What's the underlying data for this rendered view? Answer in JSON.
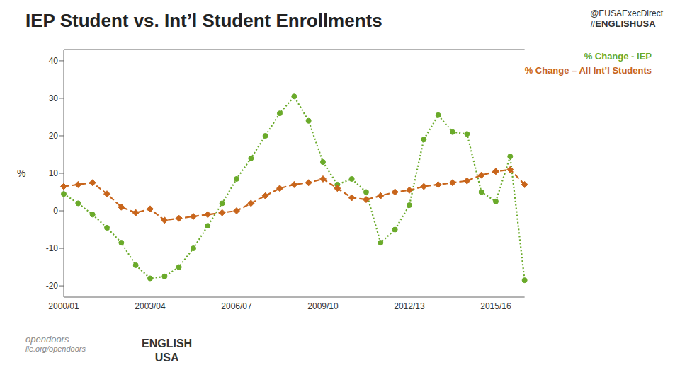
{
  "chart_data": {
    "type": "line",
    "title": "IEP Student vs. Int’l Student Enrollments",
    "annotations": [
      "@EUSAExecDirect",
      "#ENGLISHUSA",
      "ENGLISH",
      "USA",
      "open",
      "doors",
      "iie.org/opendoors"
    ],
    "ylabel": "%",
    "categories": [
      "2000/01",
      null,
      null,
      null,
      null,
      null,
      "2003/04",
      null,
      null,
      null,
      null,
      null,
      "2006/07",
      null,
      null,
      null,
      null,
      null,
      "2009/10",
      null,
      null,
      null,
      null,
      null,
      "2012/13",
      null,
      null,
      null,
      null,
      null,
      "2015/16",
      null,
      null
    ],
    "series": [
      {
        "name": "% Change - IEP",
        "color": "#6aaa2a",
        "marker": "circle",
        "line_style": "dotted",
        "values": [
          4.5,
          2.0,
          -1.0,
          -4.5,
          -8.5,
          -14.5,
          -18.0,
          -17.5,
          -15.0,
          -10.0,
          -4.0,
          2.0,
          8.5,
          14.0,
          20.0,
          26.0,
          30.5,
          24.0,
          13.0,
          7.0,
          8.5,
          5.0,
          -8.5,
          -5.0,
          1.5,
          19.0,
          25.5,
          21.0,
          20.5,
          5.0,
          2.5,
          14.5,
          -18.5
        ]
      },
      {
        "name": "% Change – All Int’l Students",
        "color": "#c8651b",
        "marker": "diamond",
        "line_style": "dashed",
        "values": [
          6.5,
          7.0,
          7.5,
          4.5,
          1.0,
          -0.5,
          0.5,
          -2.5,
          -2.0,
          -1.5,
          -1.0,
          -0.5,
          0.0,
          2.0,
          4.0,
          6.0,
          7.0,
          7.5,
          8.5,
          6.0,
          3.5,
          3.0,
          4.0,
          5.0,
          5.5,
          6.5,
          7.0,
          7.5,
          8.0,
          9.5,
          10.5,
          11.0,
          7.0
        ]
      }
    ],
    "ylim": [
      -23,
      43
    ],
    "yticks": [
      -20,
      -10,
      0,
      10,
      20,
      30,
      40
    ],
    "legend": "upper right",
    "grid": false
  }
}
